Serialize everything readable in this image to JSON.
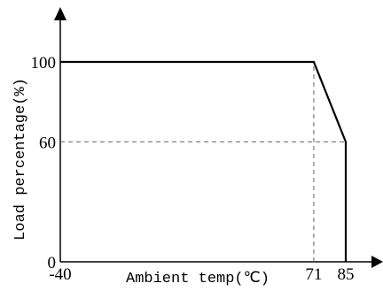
{
  "chart_data": {
    "type": "line",
    "xlabel": "Ambient temp(℃)",
    "ylabel": "Load percentage(%)",
    "x_ticks": [
      {
        "value": -40,
        "label": "-40"
      },
      {
        "value": 71,
        "label": "71"
      },
      {
        "value": 85,
        "label": "85"
      }
    ],
    "y_ticks": [
      {
        "value": 0,
        "label": "0"
      },
      {
        "value": 60,
        "label": "60"
      },
      {
        "value": 100,
        "label": "100"
      }
    ],
    "series": [
      {
        "points": [
          {
            "x": -40,
            "y": 100
          },
          {
            "x": 71,
            "y": 100
          },
          {
            "x": 85,
            "y": 60
          },
          {
            "x": 85,
            "y": 0
          }
        ]
      }
    ],
    "reference_lines": [
      {
        "orientation": "vertical",
        "value": 71,
        "from": 0,
        "to": 100,
        "style": "dashed"
      },
      {
        "orientation": "horizontal",
        "value": 60,
        "from": -40,
        "to": 85,
        "style": "dashed"
      }
    ],
    "xlim": [
      -40,
      85
    ],
    "ylim": [
      0,
      100
    ],
    "grid": false,
    "line_color": "#000000",
    "dash_color": "#666666"
  }
}
